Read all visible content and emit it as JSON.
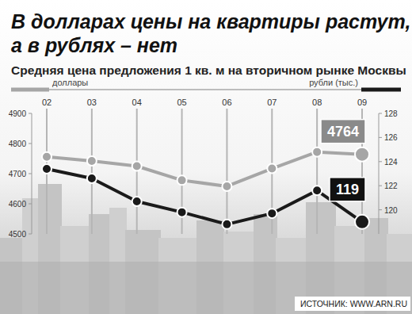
{
  "chart_data": {
    "type": "line",
    "title": "В долларах цены на квартиры растут, а в рублях – нет",
    "subtitle": "Средняя цена предложения 1 кв. м на вторичном рынке Москвы",
    "source": "ИСТОЧНИК: WWW.ARN.RU",
    "categories": [
      "02",
      "03",
      "04",
      "05",
      "06",
      "07",
      "08",
      "09"
    ],
    "series": [
      {
        "name": "доллары",
        "color": "#a6a6a6",
        "marker": "circle",
        "values": [
          4756,
          4742,
          4725,
          4678,
          4658,
          4717,
          4772,
          4764
        ]
      },
      {
        "name": "рубли (тыс.)",
        "color": "#1a1a1a",
        "marker": "circle",
        "axis": "y2",
        "values": [
          123.4,
          122.6,
          120.7,
          119.8,
          118.8,
          119.7,
          121.6,
          119
        ]
      }
    ],
    "ylim": [
      4500,
      4900
    ],
    "yticks": [
      4500,
      4600,
      4700,
      4800,
      4900
    ],
    "y2lim": [
      118,
      128
    ],
    "y2ticks": [
      120,
      122,
      124,
      126,
      128
    ],
    "grid": true,
    "legend": "top",
    "annotations": [
      {
        "text": "4764",
        "series": "доллары",
        "x": "09"
      },
      {
        "text": "119",
        "series": "рубли (тыс.)",
        "x": "09"
      }
    ]
  }
}
